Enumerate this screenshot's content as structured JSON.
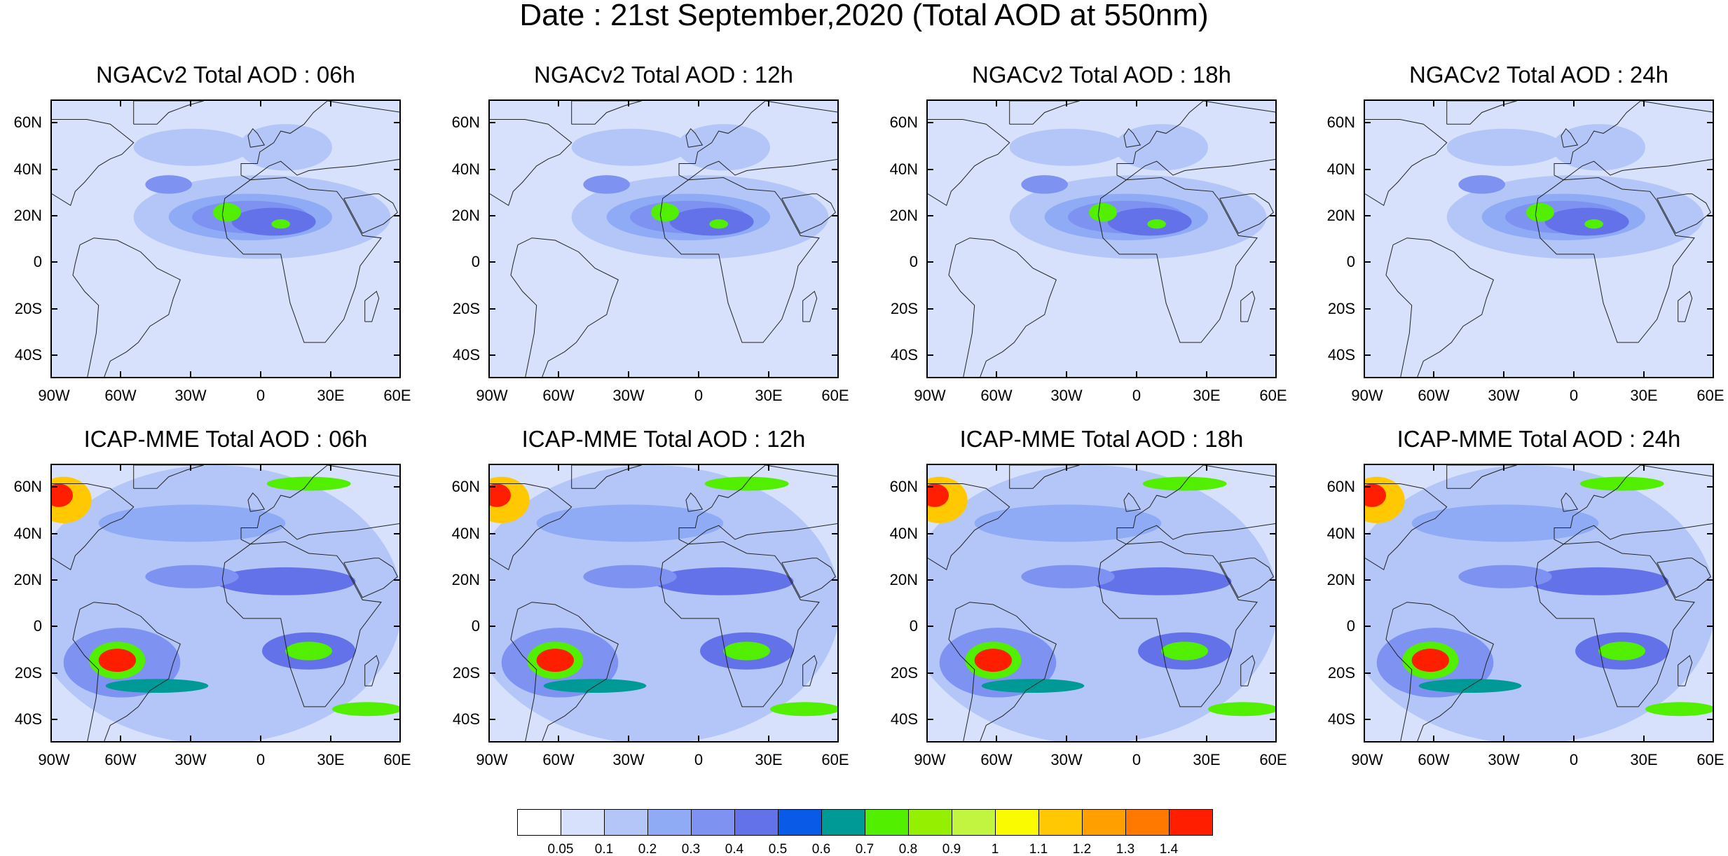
{
  "title": "Date : 21st September,2020 (Total AOD at 550nm)",
  "panels": [
    {
      "title": "NGACv2 Total AOD : 06h",
      "model": "ngac",
      "row": 0,
      "col": 0
    },
    {
      "title": "NGACv2 Total AOD : 12h",
      "model": "ngac",
      "row": 0,
      "col": 1
    },
    {
      "title": "NGACv2 Total AOD : 18h",
      "model": "ngac",
      "row": 0,
      "col": 2
    },
    {
      "title": "NGACv2 Total AOD : 24h",
      "model": "ngac",
      "row": 0,
      "col": 3
    },
    {
      "title": "ICAP-MME Total AOD : 06h",
      "model": "icap",
      "row": 1,
      "col": 0
    },
    {
      "title": "ICAP-MME Total AOD : 12h",
      "model": "icap",
      "row": 1,
      "col": 1
    },
    {
      "title": "ICAP-MME Total AOD : 18h",
      "model": "icap",
      "row": 1,
      "col": 2
    },
    {
      "title": "ICAP-MME Total AOD : 24h",
      "model": "icap",
      "row": 1,
      "col": 3
    }
  ],
  "map": {
    "lon_range": [
      -90,
      60
    ],
    "lat_range": [
      -50,
      70
    ],
    "x_ticks": [
      {
        "value": -90,
        "label": "90W"
      },
      {
        "value": -60,
        "label": "60W"
      },
      {
        "value": -30,
        "label": "30W"
      },
      {
        "value": 0,
        "label": "0"
      },
      {
        "value": 30,
        "label": "30E"
      },
      {
        "value": 60,
        "label": "60E"
      }
    ],
    "y_ticks": [
      {
        "value": 60,
        "label": "60N"
      },
      {
        "value": 40,
        "label": "40N"
      },
      {
        "value": 20,
        "label": "20N"
      },
      {
        "value": 0,
        "label": "0"
      },
      {
        "value": -20,
        "label": "20S"
      },
      {
        "value": -40,
        "label": "40S"
      }
    ]
  },
  "colorbar": {
    "colors": [
      "#ffffff",
      "#d7e1fb",
      "#b3c6f7",
      "#8fabf5",
      "#7e92f2",
      "#6472ea",
      "#0a5ae8",
      "#009a96",
      "#52f000",
      "#94f000",
      "#c1f53f",
      "#fafa00",
      "#ffc800",
      "#ffa000",
      "#ff7800",
      "#ff1e00"
    ],
    "labels": [
      "0.05",
      "0.1",
      "0.2",
      "0.3",
      "0.4",
      "0.5",
      "0.6",
      "0.7",
      "0.8",
      "0.9",
      "1",
      "1.1",
      "1.2",
      "1.3",
      "1.4"
    ]
  },
  "aod_features": {
    "ngac": [
      {
        "lon": -35,
        "lat": 5,
        "rx": 70,
        "ry": 50,
        "level": 1
      },
      {
        "lon": 0,
        "lat": 20,
        "rx": 55,
        "ry": 18,
        "level": 2
      },
      {
        "lon": -5,
        "lat": 20,
        "rx": 35,
        "ry": 10,
        "level": 3
      },
      {
        "lon": -5,
        "lat": 20,
        "rx": 25,
        "ry": 7,
        "level": 4
      },
      {
        "lon": 5,
        "lat": 18,
        "rx": 18,
        "ry": 6,
        "level": 5
      },
      {
        "lon": -15,
        "lat": 22,
        "rx": 6,
        "ry": 4,
        "level": 8
      },
      {
        "lon": 8,
        "lat": 17,
        "rx": 4,
        "ry": 2,
        "level": 8
      },
      {
        "lon": -40,
        "lat": 34,
        "rx": 10,
        "ry": 4,
        "level": 4
      },
      {
        "lon": 10,
        "lat": 50,
        "rx": 20,
        "ry": 10,
        "level": 2
      },
      {
        "lon": -30,
        "lat": 50,
        "rx": 25,
        "ry": 8,
        "level": 2
      },
      {
        "lon": -55,
        "lat": -20,
        "rx": 15,
        "ry": 15,
        "level": 1
      },
      {
        "lon": 20,
        "lat": -25,
        "rx": 25,
        "ry": 20,
        "level": 1
      }
    ],
    "icap": [
      {
        "lon": -20,
        "lat": 10,
        "rx": 80,
        "ry": 60,
        "level": 2
      },
      {
        "lon": -60,
        "lat": -15,
        "rx": 25,
        "ry": 15,
        "level": 4
      },
      {
        "lon": -62,
        "lat": -14,
        "rx": 12,
        "ry": 8,
        "level": 8
      },
      {
        "lon": -62,
        "lat": -14,
        "rx": 8,
        "ry": 5,
        "level": 15
      },
      {
        "lon": 20,
        "lat": -10,
        "rx": 20,
        "ry": 8,
        "level": 5
      },
      {
        "lon": 20,
        "lat": -10,
        "rx": 10,
        "ry": 4,
        "level": 8
      },
      {
        "lon": 10,
        "lat": 20,
        "rx": 30,
        "ry": 6,
        "level": 5
      },
      {
        "lon": -30,
        "lat": 22,
        "rx": 20,
        "ry": 5,
        "level": 4
      },
      {
        "lon": -85,
        "lat": 55,
        "rx": 12,
        "ry": 10,
        "level": 12
      },
      {
        "lon": -87,
        "lat": 57,
        "rx": 6,
        "ry": 5,
        "level": 15
      },
      {
        "lon": 20,
        "lat": 62,
        "rx": 18,
        "ry": 3,
        "level": 8
      },
      {
        "lon": -30,
        "lat": 45,
        "rx": 40,
        "ry": 8,
        "level": 3
      },
      {
        "lon": 45,
        "lat": -35,
        "rx": 15,
        "ry": 3,
        "level": 8
      },
      {
        "lon": -45,
        "lat": -25,
        "rx": 22,
        "ry": 3,
        "level": 7
      }
    ]
  }
}
